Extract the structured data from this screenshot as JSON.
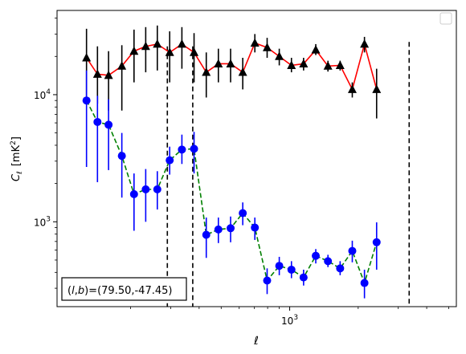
{
  "chart_data": {
    "type": "scatter",
    "title": "",
    "xlabel": "ℓ",
    "ylabel_main": "C",
    "ylabel_sub": "ℓ",
    "ylabel_unit_prefix": "[mK",
    "ylabel_unit_exp": "2",
    "ylabel_unit_suffix": "]",
    "x_scale": "log",
    "y_scale": "log",
    "xlim": [
      95,
      5400
    ],
    "ylim": [
      215,
      46000
    ],
    "x_ticks": [
      {
        "value": 1000,
        "base": "10",
        "exp": "3"
      }
    ],
    "y_ticks": [
      {
        "value": 1000,
        "base": "10",
        "exp": "3"
      },
      {
        "value": 10000,
        "base": "10",
        "exp": "4"
      }
    ],
    "legend": {
      "placement": "top-right",
      "entries": []
    },
    "annotation": {
      "prefix": "(",
      "l": "l",
      "sep": ",",
      "b": "b",
      "suffix": ")=(79.50,-47.45)"
    },
    "vlines": [
      {
        "x": 290,
        "ymin": 215,
        "ymax": 24000
      },
      {
        "x": 375,
        "ymin": 215,
        "ymax": 24000
      },
      {
        "x": 3350,
        "ymin": 215,
        "ymax": 26000
      }
    ],
    "series": [
      {
        "marker": "triangle",
        "marker_color": "#000000",
        "line_color": "#ff0000",
        "line_style": "solid",
        "error_color": "#000000",
        "points": [
          {
            "x": 128,
            "y": 19500,
            "lo": 9500,
            "hi": 33000
          },
          {
            "x": 143,
            "y": 14500,
            "lo": 8500,
            "hi": 24000
          },
          {
            "x": 160,
            "y": 14200,
            "lo": 7500,
            "hi": 22000
          },
          {
            "x": 183,
            "y": 16800,
            "lo": 7500,
            "hi": 24500
          },
          {
            "x": 207,
            "y": 22000,
            "lo": 12500,
            "hi": 32500
          },
          {
            "x": 233,
            "y": 24000,
            "lo": 15000,
            "hi": 34000
          },
          {
            "x": 262,
            "y": 25000,
            "lo": 15500,
            "hi": 35000
          },
          {
            "x": 297,
            "y": 21500,
            "lo": 12500,
            "hi": 31500
          },
          {
            "x": 336,
            "y": 25000,
            "lo": 16000,
            "hi": 34000
          },
          {
            "x": 380,
            "y": 21500,
            "lo": 12500,
            "hi": 30500
          },
          {
            "x": 430,
            "y": 15000,
            "lo": 9500,
            "hi": 21500
          },
          {
            "x": 486,
            "y": 17500,
            "lo": 12500,
            "hi": 23000
          },
          {
            "x": 550,
            "y": 17500,
            "lo": 12500,
            "hi": 23000
          },
          {
            "x": 622,
            "y": 15000,
            "lo": 11000,
            "hi": 19500
          },
          {
            "x": 703,
            "y": 25500,
            "lo": 21500,
            "hi": 30000
          },
          {
            "x": 796,
            "y": 23500,
            "lo": 19500,
            "hi": 28000
          },
          {
            "x": 900,
            "y": 20000,
            "lo": 17000,
            "hi": 23000
          },
          {
            "x": 1018,
            "y": 17000,
            "lo": 15000,
            "hi": 19500
          },
          {
            "x": 1151,
            "y": 17500,
            "lo": 15500,
            "hi": 19500
          },
          {
            "x": 1302,
            "y": 22500,
            "lo": 20500,
            "hi": 25000
          },
          {
            "x": 1473,
            "y": 16800,
            "lo": 15200,
            "hi": 18500
          },
          {
            "x": 1666,
            "y": 17000,
            "lo": 15500,
            "hi": 18500
          },
          {
            "x": 1884,
            "y": 11000,
            "lo": 9500,
            "hi": 12500
          },
          {
            "x": 2131,
            "y": 25000,
            "lo": 21500,
            "hi": 28500
          },
          {
            "x": 2410,
            "y": 11000,
            "lo": 6500,
            "hi": 16000
          }
        ]
      },
      {
        "marker": "circle",
        "marker_color": "#0000ff",
        "line_color": "#008000",
        "line_style": "dashed",
        "error_color": "#0000ff",
        "points": [
          {
            "x": 128,
            "y": 9000,
            "lo": 2700,
            "hi": 15500
          },
          {
            "x": 143,
            "y": 6100,
            "lo": 2050,
            "hi": 9800
          },
          {
            "x": 160,
            "y": 5800,
            "lo": 2550,
            "hi": 9200
          },
          {
            "x": 183,
            "y": 3300,
            "lo": 1550,
            "hi": 5000
          },
          {
            "x": 207,
            "y": 1650,
            "lo": 850,
            "hi": 2400
          },
          {
            "x": 233,
            "y": 1800,
            "lo": 1000,
            "hi": 2600
          },
          {
            "x": 262,
            "y": 1800,
            "lo": 1250,
            "hi": 2500
          },
          {
            "x": 297,
            "y": 3050,
            "lo": 2350,
            "hi": 3900
          },
          {
            "x": 336,
            "y": 3700,
            "lo": 2850,
            "hi": 4850
          },
          {
            "x": 380,
            "y": 3750,
            "lo": 2400,
            "hi": 5100
          },
          {
            "x": 430,
            "y": 790,
            "lo": 520,
            "hi": 1080
          },
          {
            "x": 486,
            "y": 870,
            "lo": 680,
            "hi": 1080
          },
          {
            "x": 550,
            "y": 890,
            "lo": 690,
            "hi": 1100
          },
          {
            "x": 622,
            "y": 1170,
            "lo": 940,
            "hi": 1420
          },
          {
            "x": 703,
            "y": 900,
            "lo": 720,
            "hi": 1080
          },
          {
            "x": 796,
            "y": 345,
            "lo": 270,
            "hi": 430
          },
          {
            "x": 900,
            "y": 450,
            "lo": 380,
            "hi": 530
          },
          {
            "x": 1018,
            "y": 420,
            "lo": 360,
            "hi": 490
          },
          {
            "x": 1151,
            "y": 365,
            "lo": 315,
            "hi": 420
          },
          {
            "x": 1302,
            "y": 540,
            "lo": 470,
            "hi": 610
          },
          {
            "x": 1473,
            "y": 490,
            "lo": 440,
            "hi": 550
          },
          {
            "x": 1666,
            "y": 430,
            "lo": 380,
            "hi": 490
          },
          {
            "x": 1884,
            "y": 590,
            "lo": 480,
            "hi": 710
          },
          {
            "x": 2131,
            "y": 330,
            "lo": 250,
            "hi": 420
          },
          {
            "x": 2410,
            "y": 690,
            "lo": 420,
            "hi": 990
          }
        ]
      }
    ]
  }
}
